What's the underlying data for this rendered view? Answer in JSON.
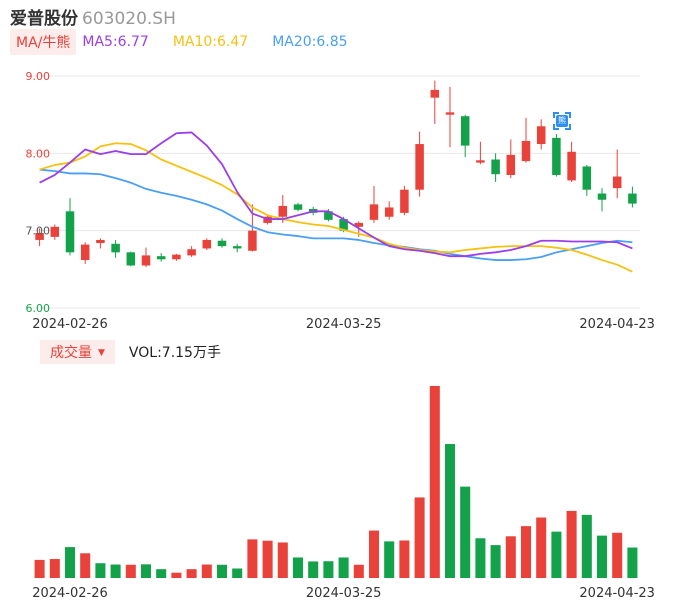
{
  "header": {
    "name": "爱普股份",
    "code": "603020.SH"
  },
  "ma_legend": {
    "toggle": "MA/牛熊",
    "ma5": "MA5:6.77",
    "ma10": "MA10:6.47",
    "ma20": "MA20:6.85"
  },
  "volume_legend": {
    "toggle": "成交量",
    "value": "VOL:7.15万手"
  },
  "badge": {
    "label": "熊"
  },
  "colors": {
    "up": "#e8423a",
    "down": "#13a149",
    "ma5": "#9b3ee8",
    "ma10": "#f5c112",
    "ma20": "#4a9ff5",
    "grid": "#e8e8e8",
    "axis_text": "#555555"
  },
  "chart_data": [
    {
      "type": "candlestick",
      "ylim": [
        6.0,
        9.0
      ],
      "y_ticks": [
        "9.00",
        "8.00",
        "7.00",
        "6.00"
      ],
      "x_ticks": [
        "2024-02-26",
        "2024-03-25",
        "2024-04-23"
      ],
      "grid": true,
      "candles": [
        {
          "o": 6.88,
          "c": 6.97,
          "h": 7.03,
          "l": 6.8
        },
        {
          "o": 6.92,
          "c": 7.05,
          "h": 7.08,
          "l": 6.88
        },
        {
          "o": 7.25,
          "c": 6.72,
          "h": 7.42,
          "l": 6.68
        },
        {
          "o": 6.62,
          "c": 6.82,
          "h": 6.85,
          "l": 6.57
        },
        {
          "o": 6.84,
          "c": 6.88,
          "h": 6.9,
          "l": 6.77
        },
        {
          "o": 6.83,
          "c": 6.72,
          "h": 6.88,
          "l": 6.65
        },
        {
          "o": 6.72,
          "c": 6.55,
          "h": 6.73,
          "l": 6.54
        },
        {
          "o": 6.55,
          "c": 6.68,
          "h": 6.78,
          "l": 6.53
        },
        {
          "o": 6.67,
          "c": 6.63,
          "h": 6.71,
          "l": 6.6
        },
        {
          "o": 6.63,
          "c": 6.69,
          "h": 6.7,
          "l": 6.61
        },
        {
          "o": 6.68,
          "c": 6.76,
          "h": 6.8,
          "l": 6.66
        },
        {
          "o": 6.77,
          "c": 6.88,
          "h": 6.9,
          "l": 6.75
        },
        {
          "o": 6.87,
          "c": 6.8,
          "h": 6.9,
          "l": 6.78
        },
        {
          "o": 6.8,
          "c": 6.77,
          "h": 6.83,
          "l": 6.72
        },
        {
          "o": 6.74,
          "c": 7.0,
          "h": 7.34,
          "l": 6.73
        },
        {
          "o": 7.1,
          "c": 7.18,
          "h": 7.2,
          "l": 7.08
        },
        {
          "o": 7.18,
          "c": 7.32,
          "h": 7.46,
          "l": 7.1
        },
        {
          "o": 7.34,
          "c": 7.27,
          "h": 7.36,
          "l": 7.25
        },
        {
          "o": 7.28,
          "c": 7.23,
          "h": 7.31,
          "l": 7.2
        },
        {
          "o": 7.25,
          "c": 7.14,
          "h": 7.28,
          "l": 7.12
        },
        {
          "o": 7.15,
          "c": 7.0,
          "h": 7.18,
          "l": 6.98
        },
        {
          "o": 7.05,
          "c": 7.1,
          "h": 7.12,
          "l": 6.92
        },
        {
          "o": 7.14,
          "c": 7.34,
          "h": 7.58,
          "l": 7.1
        },
        {
          "o": 7.18,
          "c": 7.3,
          "h": 7.38,
          "l": 7.14
        },
        {
          "o": 7.23,
          "c": 7.53,
          "h": 7.58,
          "l": 7.2
        },
        {
          "o": 7.53,
          "c": 8.12,
          "h": 8.28,
          "l": 7.44
        },
        {
          "o": 8.72,
          "c": 8.82,
          "h": 8.94,
          "l": 8.38
        },
        {
          "o": 8.5,
          "c": 8.53,
          "h": 8.86,
          "l": 8.08
        },
        {
          "o": 8.48,
          "c": 8.1,
          "h": 8.5,
          "l": 7.95
        },
        {
          "o": 7.88,
          "c": 7.91,
          "h": 8.15,
          "l": 7.86
        },
        {
          "o": 7.92,
          "c": 7.73,
          "h": 8.0,
          "l": 7.63
        },
        {
          "o": 7.72,
          "c": 7.98,
          "h": 8.18,
          "l": 7.68
        },
        {
          "o": 7.9,
          "c": 8.16,
          "h": 8.46,
          "l": 7.88
        },
        {
          "o": 8.12,
          "c": 8.35,
          "h": 8.44,
          "l": 8.05
        },
        {
          "o": 8.2,
          "c": 7.72,
          "h": 8.25,
          "l": 7.7
        },
        {
          "o": 7.65,
          "c": 8.02,
          "h": 8.15,
          "l": 7.63
        },
        {
          "o": 7.83,
          "c": 7.53,
          "h": 7.85,
          "l": 7.45
        },
        {
          "o": 7.48,
          "c": 7.4,
          "h": 7.55,
          "l": 7.25
        },
        {
          "o": 7.55,
          "c": 7.7,
          "h": 8.05,
          "l": 7.42
        },
        {
          "o": 7.48,
          "c": 7.35,
          "h": 7.57,
          "l": 7.3
        }
      ],
      "ma5": [
        7.62,
        7.72,
        7.88,
        8.05,
        7.99,
        8.03,
        7.99,
        7.99,
        8.13,
        8.26,
        8.27,
        8.1,
        7.86,
        7.5,
        7.22,
        7.15,
        7.15,
        7.2,
        7.25,
        7.25,
        7.15,
        7.03,
        6.91,
        6.8,
        6.76,
        6.74,
        6.71,
        6.67,
        6.67,
        6.7,
        6.72,
        6.75,
        6.8,
        6.87,
        6.87,
        6.86,
        6.86,
        6.86,
        6.85,
        6.77
      ],
      "ma10": [
        7.79,
        7.85,
        7.88,
        7.96,
        8.09,
        8.13,
        8.12,
        8.04,
        7.92,
        7.84,
        7.76,
        7.68,
        7.59,
        7.47,
        7.3,
        7.2,
        7.15,
        7.11,
        7.08,
        7.06,
        7.01,
        6.96,
        6.91,
        6.83,
        6.78,
        6.75,
        6.73,
        6.72,
        6.75,
        6.77,
        6.79,
        6.8,
        6.8,
        6.8,
        6.78,
        6.75,
        6.69,
        6.62,
        6.56,
        6.47
      ],
      "ma20": [
        7.79,
        7.77,
        7.74,
        7.74,
        7.73,
        7.68,
        7.62,
        7.54,
        7.49,
        7.45,
        7.4,
        7.34,
        7.26,
        7.15,
        7.05,
        6.98,
        6.95,
        6.93,
        6.9,
        6.9,
        6.9,
        6.88,
        6.84,
        6.81,
        6.79,
        6.76,
        6.74,
        6.7,
        6.67,
        6.64,
        6.62,
        6.62,
        6.63,
        6.66,
        6.72,
        6.76,
        6.8,
        6.84,
        6.87,
        6.85
      ]
    },
    {
      "type": "bar",
      "title": "成交量",
      "x_ticks": [
        "2024-02-26",
        "2024-03-25",
        "2024-04-23"
      ],
      "values": [
        0.82,
        0.86,
        1.4,
        1.12,
        0.67,
        0.61,
        0.6,
        0.62,
        0.4,
        0.24,
        0.4,
        0.61,
        0.6,
        0.43,
        1.75,
        1.69,
        1.61,
        0.93,
        0.75,
        0.76,
        0.93,
        0.6,
        2.15,
        1.66,
        1.7,
        3.65,
        8.7,
        6.07,
        4.14,
        1.8,
        1.49,
        1.89,
        2.35,
        2.74,
        2.1,
        3.04,
        2.86,
        1.92,
        2.05,
        1.38
      ],
      "directions": [
        "up",
        "up",
        "down",
        "up",
        "down",
        "down",
        "up",
        "down",
        "down",
        "up",
        "up",
        "up",
        "down",
        "down",
        "up",
        "up",
        "up",
        "down",
        "down",
        "down",
        "down",
        "up",
        "up",
        "down",
        "up",
        "up",
        "up",
        "down",
        "down",
        "down",
        "down",
        "up",
        "up",
        "up",
        "down",
        "up",
        "down",
        "down",
        "up",
        "down"
      ]
    }
  ]
}
